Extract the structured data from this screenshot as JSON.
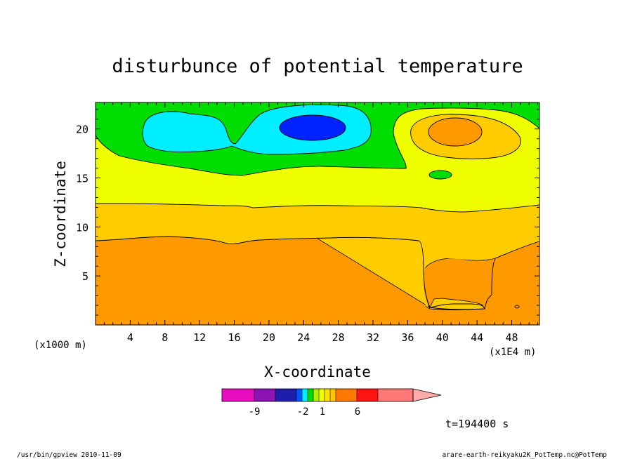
{
  "chart_data": {
    "type": "contour",
    "title": "disturbunce of potential temperature",
    "xlabel": "X-coordinate",
    "ylabel": "Z-coordinate",
    "x_scale_note_left": "(x1000 m)",
    "x_scale_note_right": "(x1E4 m)",
    "xlim": [
      0,
      51.2
    ],
    "ylim": [
      0,
      22.7
    ],
    "x_ticks": [
      "4",
      "8",
      "12",
      "16",
      "20",
      "24",
      "28",
      "32",
      "36",
      "40",
      "44",
      "48"
    ],
    "y_ticks": [
      "5",
      "10",
      "15",
      "20"
    ],
    "colorbar_labels": [
      "-9",
      "-2",
      "1",
      "6"
    ],
    "time_label": "t=194400 s",
    "colors": {
      "orange": "#ff9900",
      "gold": "#ffcc00",
      "yellow": "#f0ff00",
      "green": "#00dd00",
      "cyan": "#00eeff",
      "blue": "#0022ff",
      "dark_orange": "#ff9900"
    }
  },
  "footer": {
    "left": "/usr/bin/gpview   2010-11-09",
    "right": "arare-earth-reikyaku2K_PotTemp.nc@PotTemp"
  }
}
